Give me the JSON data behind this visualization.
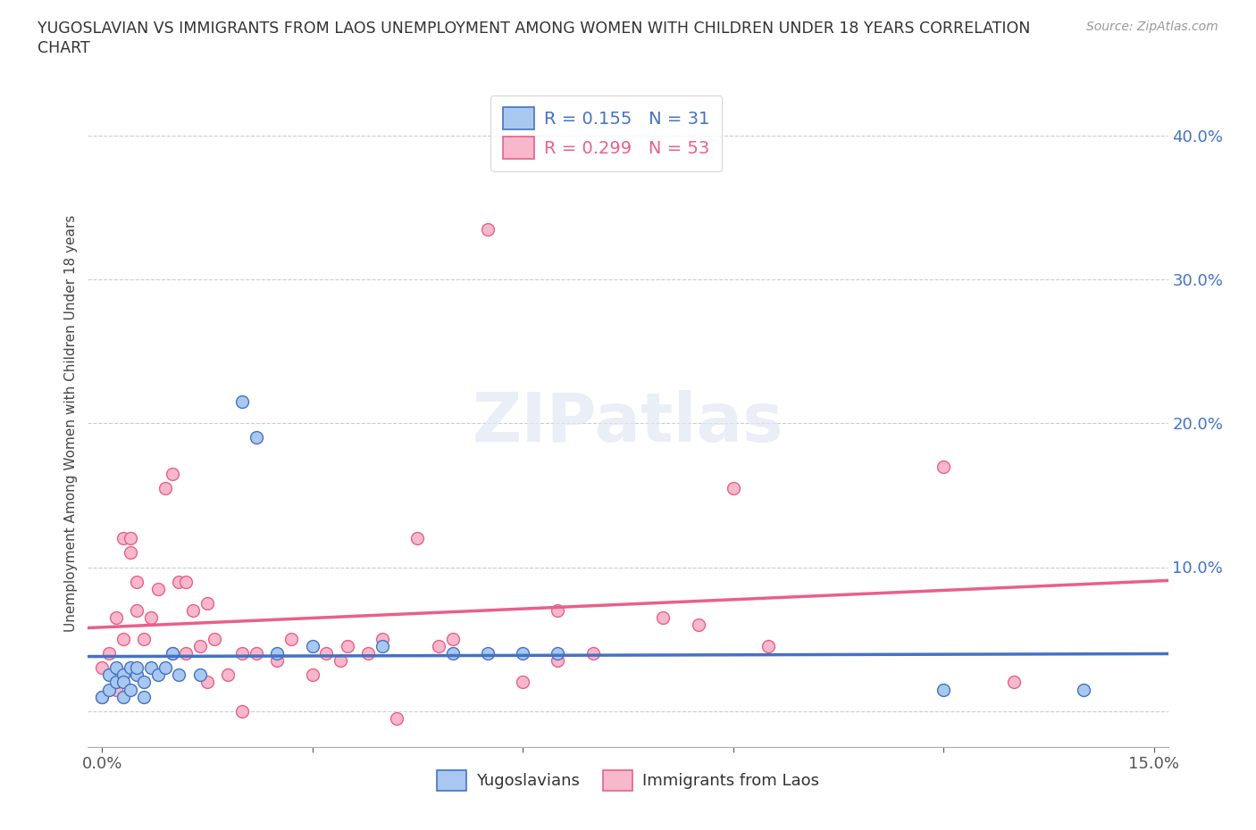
{
  "title_line1": "YUGOSLAVIAN VS IMMIGRANTS FROM LAOS UNEMPLOYMENT AMONG WOMEN WITH CHILDREN UNDER 18 YEARS CORRELATION",
  "title_line2": "CHART",
  "source": "Source: ZipAtlas.com",
  "ylabel": "Unemployment Among Women with Children Under 18 years",
  "xlim": [
    -0.002,
    0.152
  ],
  "ylim": [
    -0.025,
    0.425
  ],
  "yticks": [
    0.0,
    0.1,
    0.2,
    0.3,
    0.4
  ],
  "ytick_labels": [
    "",
    "10.0%",
    "20.0%",
    "30.0%",
    "40.0%"
  ],
  "xticks": [
    0.0,
    0.03,
    0.06,
    0.09,
    0.12,
    0.15
  ],
  "xtick_labels": [
    "0.0%",
    "",
    "",
    "",
    "",
    "15.0%"
  ],
  "R_yugo": 0.155,
  "N_yugo": 31,
  "R_laos": 0.299,
  "N_laos": 53,
  "color_yugo": "#A8C8F0",
  "color_laos": "#F8B8CC",
  "line_color_yugo": "#4472C4",
  "line_color_laos": "#E8608A",
  "background_color": "#FFFFFF",
  "grid_color": "#CCCCCC",
  "yugo_points_x": [
    0.0,
    0.001,
    0.001,
    0.002,
    0.002,
    0.003,
    0.003,
    0.003,
    0.004,
    0.004,
    0.005,
    0.005,
    0.006,
    0.006,
    0.007,
    0.008,
    0.009,
    0.01,
    0.011,
    0.014,
    0.02,
    0.022,
    0.025,
    0.03,
    0.04,
    0.05,
    0.055,
    0.06,
    0.065,
    0.12,
    0.14
  ],
  "yugo_points_y": [
    0.01,
    0.025,
    0.015,
    0.02,
    0.03,
    0.025,
    0.02,
    0.01,
    0.03,
    0.015,
    0.025,
    0.03,
    0.02,
    0.01,
    0.03,
    0.025,
    0.03,
    0.04,
    0.025,
    0.025,
    0.215,
    0.19,
    0.04,
    0.045,
    0.045,
    0.04,
    0.04,
    0.04,
    0.04,
    0.015,
    0.015
  ],
  "laos_points_x": [
    0.0,
    0.0,
    0.001,
    0.002,
    0.002,
    0.003,
    0.003,
    0.003,
    0.004,
    0.004,
    0.005,
    0.005,
    0.006,
    0.007,
    0.008,
    0.009,
    0.01,
    0.01,
    0.011,
    0.012,
    0.012,
    0.013,
    0.014,
    0.015,
    0.015,
    0.016,
    0.018,
    0.02,
    0.02,
    0.022,
    0.025,
    0.027,
    0.03,
    0.032,
    0.034,
    0.035,
    0.038,
    0.04,
    0.042,
    0.045,
    0.048,
    0.05,
    0.055,
    0.06,
    0.065,
    0.065,
    0.07,
    0.08,
    0.085,
    0.09,
    0.095,
    0.12,
    0.13
  ],
  "laos_points_y": [
    0.01,
    0.03,
    0.04,
    0.015,
    0.065,
    0.12,
    0.025,
    0.05,
    0.11,
    0.12,
    0.07,
    0.09,
    0.05,
    0.065,
    0.085,
    0.155,
    0.165,
    0.04,
    0.09,
    0.04,
    0.09,
    0.07,
    0.045,
    0.02,
    0.075,
    0.05,
    0.025,
    0.04,
    0.0,
    0.04,
    0.035,
    0.05,
    0.025,
    0.04,
    0.035,
    0.045,
    0.04,
    0.05,
    -0.005,
    0.12,
    0.045,
    0.05,
    0.335,
    0.02,
    0.035,
    0.07,
    0.04,
    0.065,
    0.06,
    0.155,
    0.045,
    0.17,
    0.02
  ]
}
